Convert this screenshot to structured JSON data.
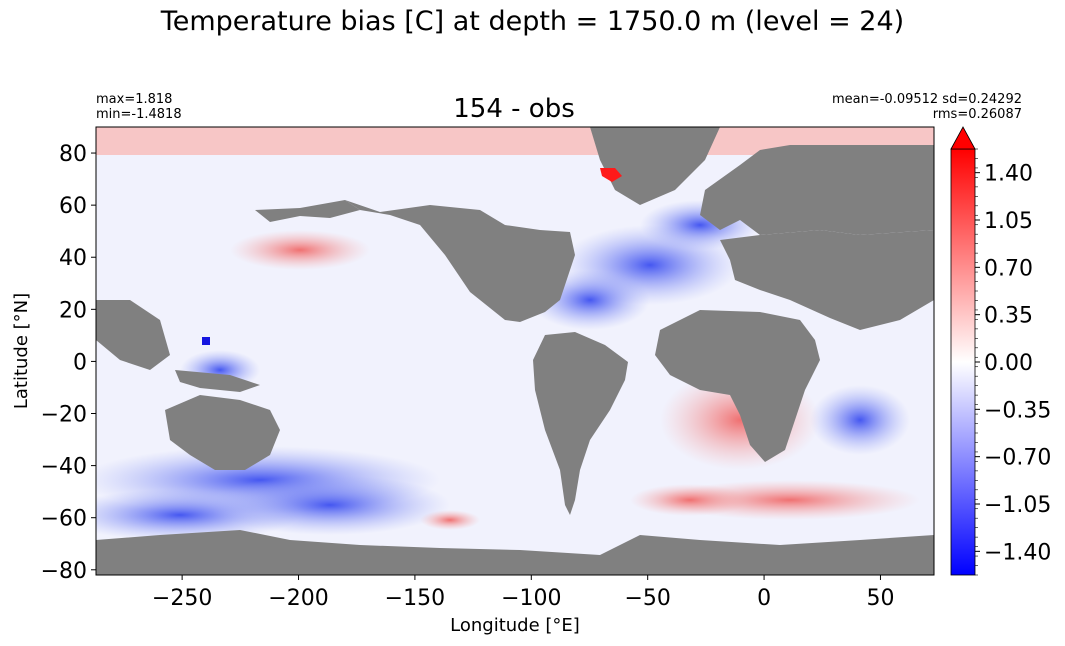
{
  "figure": {
    "suptitle": "Temperature bias [C] at depth = 1750.0 m (level = 24)",
    "axes_title": "154 - obs",
    "stats_left": [
      "max=1.818",
      "min=-1.4818"
    ],
    "stats_right": [
      "mean=-0.09512 sd=0.24292",
      "rms=0.26087"
    ]
  },
  "chart_data": {
    "type": "heatmap",
    "title": "154 - obs",
    "xlabel": "Longitude [°E]",
    "ylabel": "Latitude [°N]",
    "xlim": [
      -287,
      73
    ],
    "ylim": [
      -82,
      90
    ],
    "xticks": [
      -250,
      -200,
      -150,
      -100,
      -50,
      0,
      50
    ],
    "xtick_labels": [
      "−250",
      "−200",
      "−150",
      "−100",
      "−50",
      "0",
      "50"
    ],
    "yticks": [
      -80,
      -60,
      -40,
      -20,
      0,
      20,
      40,
      60,
      80
    ],
    "ytick_labels": [
      "−80",
      "−60",
      "−40",
      "−20",
      "0",
      "20",
      "40",
      "60",
      "80"
    ],
    "land_color": "#808080",
    "colormap": "bwr",
    "colorbar": {
      "vmin": -1.575,
      "vmax": 1.575,
      "extend": "max",
      "ticks": [
        -1.4,
        -1.05,
        -0.7,
        -0.35,
        0.0,
        0.35,
        0.7,
        1.05,
        1.4
      ],
      "tick_labels": [
        "−1.40",
        "−1.05",
        "−0.70",
        "−0.35",
        "0.00",
        "0.35",
        "0.70",
        "1.05",
        "1.40"
      ]
    },
    "max": 1.818,
    "min": -1.4818,
    "mean": -0.09512,
    "sd": 0.24292,
    "rms": 0.26087
  }
}
